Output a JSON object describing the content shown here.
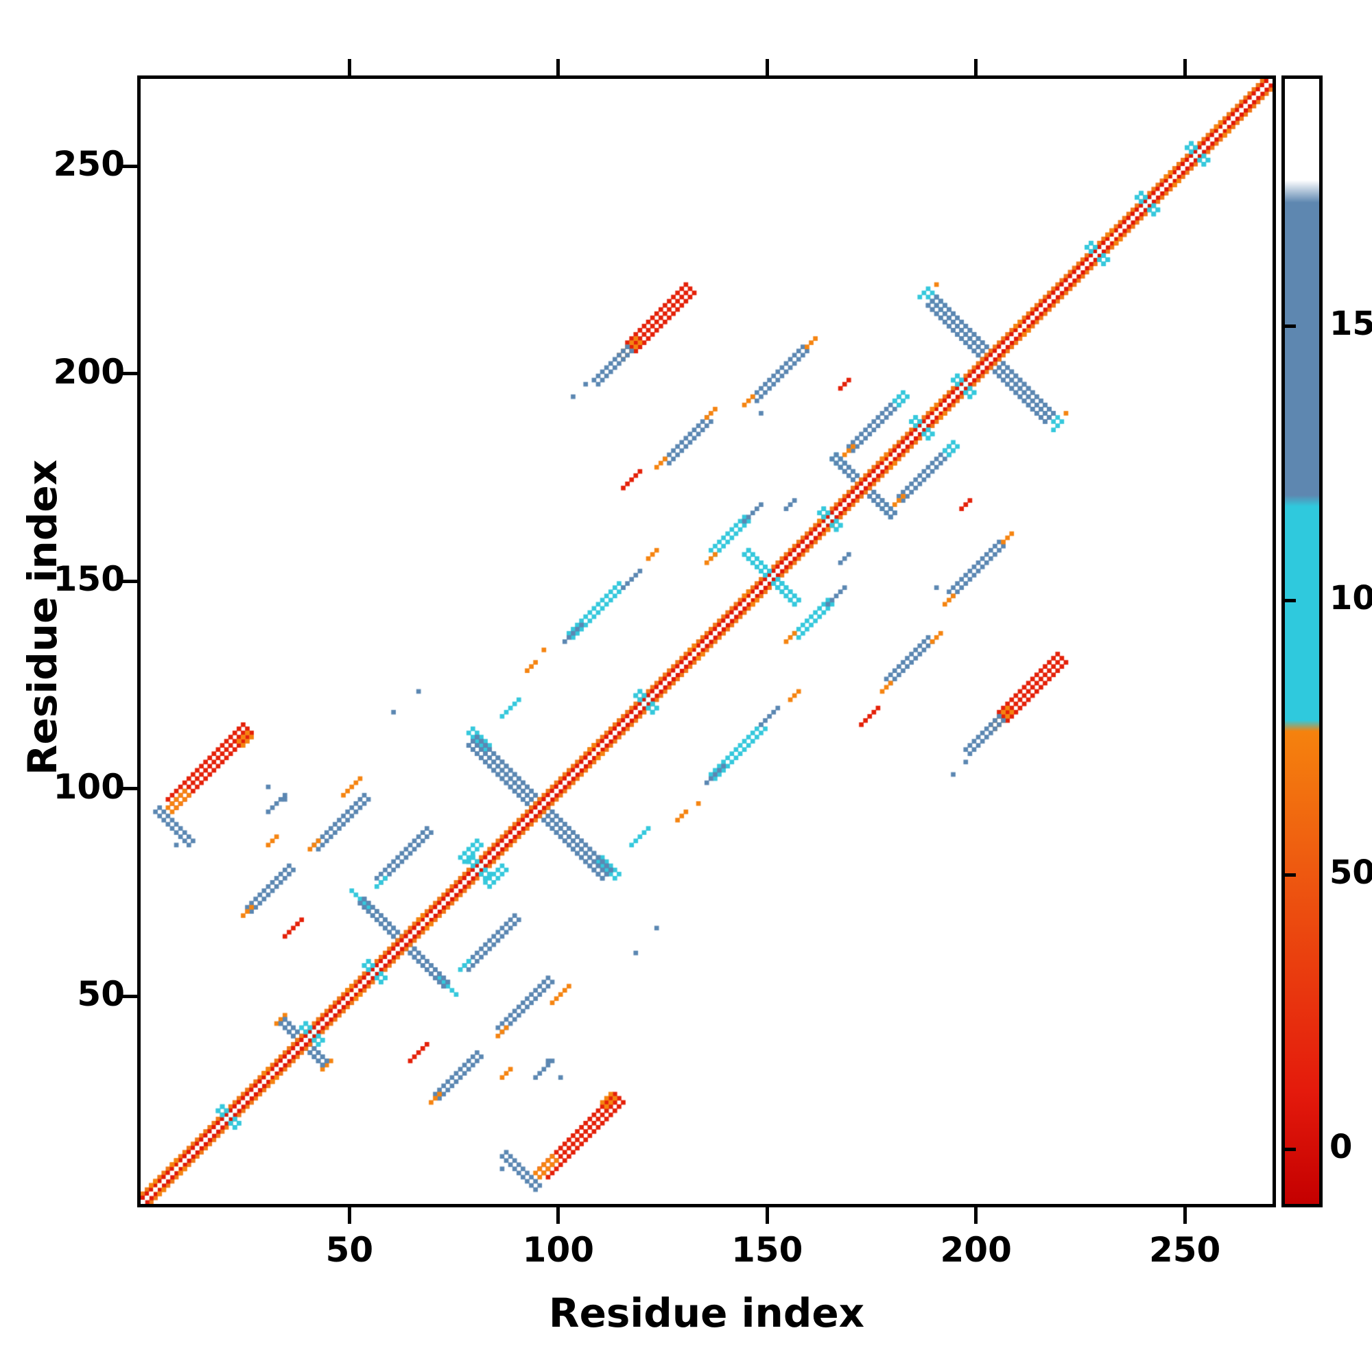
{
  "figure": {
    "kind": "protein residue-residue contact map"
  },
  "chart_data": {
    "type": "heatmap",
    "variant": "contact-map",
    "xlabel": "Residue index",
    "ylabel": "Residue index",
    "x_range": [
      0,
      271
    ],
    "y_range": [
      0,
      271
    ],
    "x_ticks": [
      50,
      100,
      150,
      200,
      250
    ],
    "y_ticks": [
      50,
      100,
      150,
      200,
      250
    ],
    "grid": false,
    "symmetric": true,
    "palette": {
      "red": "#e42109",
      "orange": "#f58411",
      "cyan": "#35c8dc",
      "blue": "#5b87b2",
      "white": "#ffffff",
      "diag_inner": "#e01808",
      "diag_outer": "#f07818"
    },
    "colorbar": {
      "range": [
        -10,
        195
      ],
      "ticks": [
        0,
        50,
        100,
        150
      ],
      "stops": [
        {
          "p": 0.0,
          "c": "#c40000"
        },
        {
          "p": 0.1,
          "c": "#e41a0c"
        },
        {
          "p": 0.3,
          "c": "#ee5a10"
        },
        {
          "p": 0.42,
          "c": "#f5820e"
        },
        {
          "p": 0.43,
          "c": "#2fc9dd"
        },
        {
          "p": 0.62,
          "c": "#2fc9dd"
        },
        {
          "p": 0.63,
          "c": "#5e87b0"
        },
        {
          "p": 0.89,
          "c": "#5e87b0"
        },
        {
          "p": 0.91,
          "c": "#ffffff"
        },
        {
          "p": 1.0,
          "c": "#ffffff"
        }
      ]
    },
    "diagonal": {
      "white_center": true,
      "inner_width": 1,
      "outer_width": 2
    },
    "diag_crosses_cyan": [
      20,
      40,
      55,
      80,
      120,
      150,
      164,
      186,
      196,
      228,
      240,
      252
    ],
    "diag_marks_orange": [
      3,
      8,
      30,
      50,
      67,
      108,
      132,
      145,
      163,
      178,
      190,
      210,
      232,
      246,
      258
    ],
    "anti_segments": [
      {
        "c": 38,
        "hl": 5,
        "w": 2,
        "color": "blue"
      },
      {
        "c": 62,
        "hl": 10,
        "w": 2,
        "color": "blue"
      },
      {
        "c": 95,
        "hl": 16,
        "w": 3,
        "color": "blue"
      },
      {
        "c": 150,
        "hl": 6,
        "w": 2,
        "color": "cyan"
      },
      {
        "c": 172,
        "hl": 7,
        "w": 2,
        "color": "blue"
      },
      {
        "c": 203,
        "hl": 14,
        "w": 3,
        "color": "blue"
      }
    ],
    "segments": [
      {
        "x": 16,
        "y": 105,
        "hl": 9,
        "dir": "par",
        "w": 3,
        "color": "red"
      },
      {
        "x": 8,
        "y": 97,
        "hl": 2,
        "dir": "par",
        "w": 2,
        "color": "orange"
      },
      {
        "x": 24,
        "y": 112,
        "hl": 1,
        "dir": "par",
        "w": 2,
        "color": "orange"
      },
      {
        "x": 32,
        "y": 96,
        "hl": 2,
        "dir": "par",
        "w": 1,
        "color": "blue"
      },
      {
        "x": 50,
        "y": 100,
        "hl": 2,
        "dir": "par",
        "w": 1,
        "color": "orange"
      },
      {
        "x": 7,
        "y": 90,
        "hl": 4,
        "dir": "anti",
        "w": 2,
        "color": "blue"
      },
      {
        "x": 31,
        "y": 87,
        "hl": 1,
        "dir": "par",
        "w": 1,
        "color": "orange"
      },
      {
        "x": 47,
        "y": 92,
        "hl": 6,
        "dir": "par",
        "w": 2,
        "color": "blue"
      },
      {
        "x": 41,
        "y": 86,
        "hl": 1,
        "dir": "par",
        "w": 1,
        "color": "orange"
      },
      {
        "x": 30,
        "y": 76,
        "hl": 5,
        "dir": "par",
        "w": 2,
        "color": "blue"
      },
      {
        "x": 25,
        "y": 70,
        "hl": 1,
        "dir": "par",
        "w": 1,
        "color": "orange"
      },
      {
        "x": 36,
        "y": 66,
        "hl": 2,
        "dir": "par",
        "w": 1,
        "color": "red"
      },
      {
        "x": 33,
        "y": 44,
        "hl": 1,
        "dir": "par",
        "w": 1,
        "color": "orange"
      },
      {
        "x": 62,
        "y": 84,
        "hl": 6,
        "dir": "par",
        "w": 2,
        "color": "blue"
      },
      {
        "x": 57,
        "y": 77,
        "hl": 1,
        "dir": "par",
        "w": 1,
        "color": "cyan"
      },
      {
        "x": 78,
        "y": 85,
        "hl": 2,
        "dir": "par",
        "w": 2,
        "color": "cyan"
      },
      {
        "x": 52,
        "y": 73,
        "hl": 2,
        "dir": "anti",
        "w": 1,
        "color": "cyan"
      },
      {
        "x": 80,
        "y": 111,
        "hl": 2,
        "dir": "anti",
        "w": 2,
        "color": "cyan"
      },
      {
        "x": 88,
        "y": 119,
        "hl": 2,
        "dir": "par",
        "w": 1,
        "color": "cyan"
      },
      {
        "x": 93,
        "y": 129,
        "hl": 1,
        "dir": "par",
        "w": 1,
        "color": "orange"
      },
      {
        "x": 108,
        "y": 143,
        "hl": 6,
        "dir": "par",
        "w": 2,
        "color": "cyan"
      },
      {
        "x": 103,
        "y": 137,
        "hl": 2,
        "dir": "par",
        "w": 1,
        "color": "blue"
      },
      {
        "x": 117,
        "y": 150,
        "hl": 2,
        "dir": "par",
        "w": 1,
        "color": "blue"
      },
      {
        "x": 122,
        "y": 156,
        "hl": 1,
        "dir": "par",
        "w": 1,
        "color": "orange"
      },
      {
        "x": 124,
        "y": 213,
        "hl": 7,
        "dir": "par",
        "w": 3,
        "color": "red"
      },
      {
        "x": 116,
        "y": 206,
        "hl": 2,
        "dir": "par",
        "w": 2,
        "color": "orange"
      },
      {
        "x": 112,
        "y": 202,
        "hl": 4,
        "dir": "par",
        "w": 2,
        "color": "blue"
      },
      {
        "x": 152,
        "y": 200,
        "hl": 6,
        "dir": "par",
        "w": 2,
        "color": "blue"
      },
      {
        "x": 145,
        "y": 193,
        "hl": 1,
        "dir": "par",
        "w": 1,
        "color": "orange"
      },
      {
        "x": 160,
        "y": 207,
        "hl": 1,
        "dir": "par",
        "w": 1,
        "color": "orange"
      },
      {
        "x": 168,
        "y": 197,
        "hl": 1,
        "dir": "par",
        "w": 1,
        "color": "red"
      },
      {
        "x": 130,
        "y": 184,
        "hl": 5,
        "dir": "par",
        "w": 2,
        "color": "blue"
      },
      {
        "x": 136,
        "y": 190,
        "hl": 1,
        "dir": "par",
        "w": 1,
        "color": "orange"
      },
      {
        "x": 124,
        "y": 178,
        "hl": 1,
        "dir": "par",
        "w": 1,
        "color": "orange"
      },
      {
        "x": 117,
        "y": 174,
        "hl": 2,
        "dir": "par",
        "w": 1,
        "color": "red"
      },
      {
        "x": 140,
        "y": 161,
        "hl": 4,
        "dir": "par",
        "w": 2,
        "color": "cyan"
      },
      {
        "x": 146,
        "y": 166,
        "hl": 2,
        "dir": "par",
        "w": 1,
        "color": "blue"
      },
      {
        "x": 136,
        "y": 155,
        "hl": 1,
        "dir": "par",
        "w": 1,
        "color": "orange"
      },
      {
        "x": 155,
        "y": 168,
        "hl": 1,
        "dir": "par",
        "w": 1,
        "color": "blue"
      },
      {
        "x": 175,
        "y": 188,
        "hl": 6,
        "dir": "par",
        "w": 2,
        "color": "blue"
      },
      {
        "x": 181,
        "y": 194,
        "hl": 1,
        "dir": "par",
        "w": 2,
        "color": "cyan"
      },
      {
        "x": 169,
        "y": 181,
        "hl": 1,
        "dir": "par",
        "w": 1,
        "color": "orange"
      },
      {
        "x": 166,
        "y": 178,
        "hl": 1,
        "dir": "anti",
        "w": 2,
        "color": "cyan"
      },
      {
        "x": 189,
        "y": 217,
        "hl": 2,
        "dir": "anti",
        "w": 2,
        "color": "cyan"
      }
    ],
    "dots": [
      {
        "x": 30,
        "y": 100,
        "color": "blue"
      },
      {
        "x": 34,
        "y": 97,
        "color": "blue"
      },
      {
        "x": 8,
        "y": 86,
        "color": "blue"
      },
      {
        "x": 60,
        "y": 118,
        "color": "blue"
      },
      {
        "x": 66,
        "y": 123,
        "color": "blue"
      },
      {
        "x": 96,
        "y": 133,
        "color": "orange"
      },
      {
        "x": 106,
        "y": 197,
        "color": "blue"
      },
      {
        "x": 103,
        "y": 194,
        "color": "blue"
      },
      {
        "x": 148,
        "y": 190,
        "color": "blue"
      },
      {
        "x": 186,
        "y": 218,
        "color": "cyan"
      },
      {
        "x": 190,
        "y": 221,
        "color": "orange"
      }
    ]
  }
}
